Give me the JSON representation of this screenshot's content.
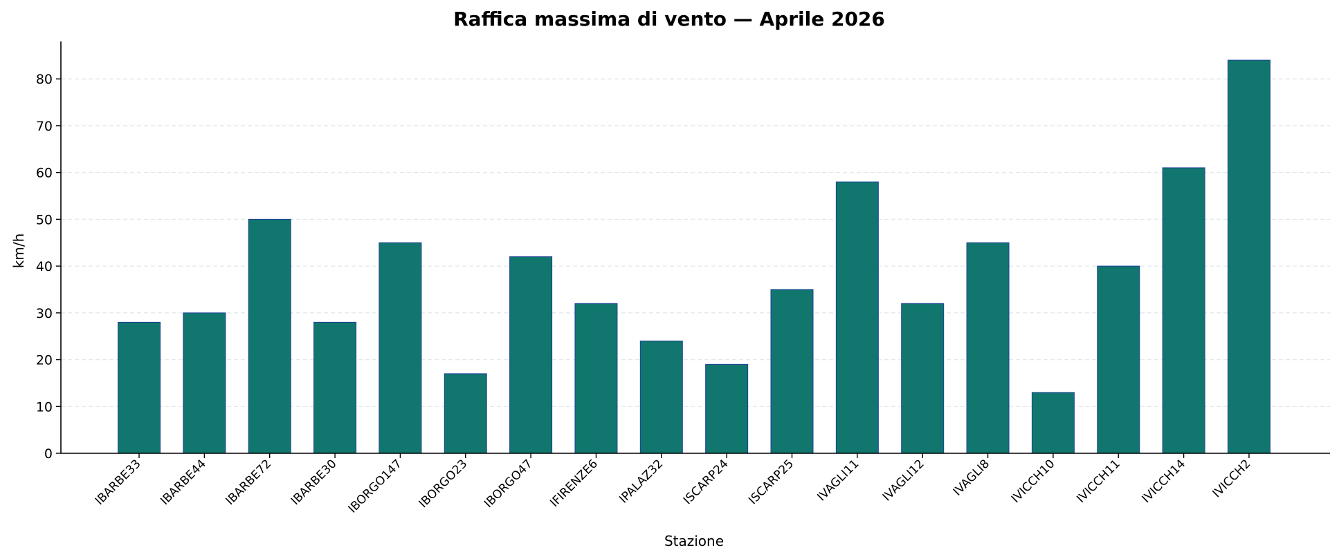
{
  "chart_data": {
    "type": "bar",
    "title": "Raffica massima di vento — Aprile 2026",
    "xlabel": "Stazione",
    "ylabel": "km/h",
    "categories": [
      "IBARBE33",
      "IBARBE44",
      "IBARBE72",
      "IBARBE30",
      "IBORGO147",
      "IBORGO23",
      "IBORGO47",
      "IFIRENZE6",
      "IPALAZ32",
      "ISCARP24",
      "ISCARP25",
      "IVAGLI11",
      "IVAGLI12",
      "IVAGLI8",
      "IVICCH10",
      "IVICCH11",
      "IVICCH14",
      "IVICCH2"
    ],
    "values": [
      28,
      30,
      50,
      28,
      45,
      17,
      42,
      32,
      24,
      19,
      35,
      58,
      32,
      45,
      13,
      40,
      61,
      84
    ],
    "ylim": [
      0,
      88
    ],
    "yticks": [
      0,
      10,
      20,
      30,
      40,
      50,
      60,
      70,
      80
    ],
    "grid": true,
    "grid_axis": "y",
    "colors": {
      "bar_fill": "#10766e",
      "bar_edge": "#1f3f99",
      "grid": "#e3e7ea",
      "axis": "#000000"
    }
  }
}
